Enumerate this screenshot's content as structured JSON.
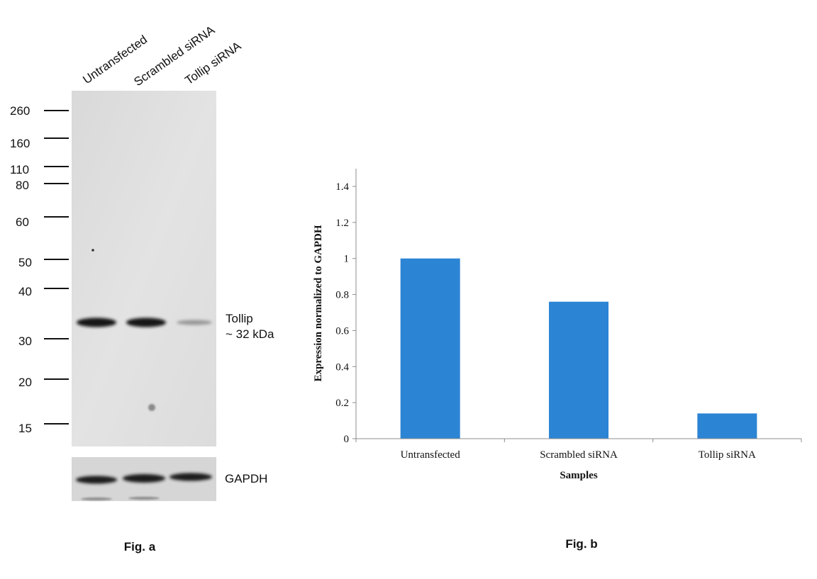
{
  "fig_a": {
    "lanes": [
      "Untransfected",
      "Scrambled siRNA",
      "Tollip siRNA"
    ],
    "markers": [
      "260",
      "160",
      "110",
      "80",
      "60",
      "50",
      "40",
      "30",
      "20",
      "15"
    ],
    "band_label_1": "Tollip",
    "band_label_2": "~ 32 kDa",
    "loading_label": "GAPDH",
    "caption": "Fig. a",
    "band_intensity": [
      1.0,
      1.0,
      0.25
    ]
  },
  "chart_data": {
    "type": "bar",
    "categories": [
      "Untransfected",
      "Scrambled siRNA",
      "Tollip siRNA"
    ],
    "values": [
      1.0,
      0.76,
      0.14
    ],
    "xlabel": "Samples",
    "ylabel": "Expression normalized to GAPDH",
    "ylim": [
      0,
      1.4
    ],
    "yticks": [
      "0",
      "0.2",
      "0.4",
      "0.6",
      "0.8",
      "1",
      "1.2",
      "1.4"
    ],
    "grid": false,
    "bar_color": "#2b84d4",
    "caption": "Fig. b"
  }
}
